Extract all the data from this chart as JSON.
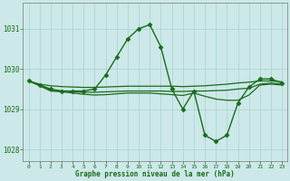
{
  "title": "Graphe pression niveau de la mer (hPa)",
  "background_color": "#cce8e8",
  "grid_color": "#aad0d0",
  "line_color": "#1a6b1a",
  "xlim": [
    -0.5,
    23.5
  ],
  "ylim": [
    1027.7,
    1031.65
  ],
  "yticks": [
    1028,
    1029,
    1030,
    1031
  ],
  "xticks": [
    0,
    1,
    2,
    3,
    4,
    5,
    6,
    7,
    8,
    9,
    10,
    11,
    12,
    13,
    14,
    15,
    16,
    17,
    18,
    19,
    20,
    21,
    22,
    23
  ],
  "series": [
    {
      "x": [
        0,
        1,
        2,
        3,
        4,
        5,
        6,
        7,
        8,
        9,
        10,
        11,
        12,
        13,
        14,
        15,
        16,
        17,
        18,
        19,
        20,
        21,
        22,
        23
      ],
      "y": [
        1029.7,
        1029.6,
        1029.5,
        1029.45,
        1029.45,
        1029.45,
        1029.5,
        1029.85,
        1030.3,
        1030.75,
        1031.0,
        1031.1,
        1030.55,
        1029.5,
        1029.0,
        1029.45,
        1028.35,
        1028.2,
        1028.35,
        1029.15,
        1029.55,
        1029.75,
        1029.75,
        1029.65
      ],
      "marker": "D",
      "markersize": 2.5,
      "linewidth": 1.0
    },
    {
      "x": [
        0,
        1,
        2,
        3,
        4,
        5,
        6,
        7,
        8,
        9,
        10,
        11,
        12,
        13,
        14,
        15,
        16,
        17,
        18,
        19,
        20,
        21,
        22,
        23
      ],
      "y": [
        1029.7,
        1029.62,
        1029.58,
        1029.56,
        1029.55,
        1029.54,
        1029.54,
        1029.55,
        1029.56,
        1029.57,
        1029.57,
        1029.57,
        1029.57,
        1029.57,
        1029.56,
        1029.57,
        1029.58,
        1029.6,
        1029.62,
        1029.65,
        1029.67,
        1029.7,
        1029.7,
        1029.68
      ],
      "marker": "None",
      "markersize": 0,
      "linewidth": 0.9
    },
    {
      "x": [
        0,
        1,
        2,
        3,
        4,
        5,
        6,
        7,
        8,
        9,
        10,
        11,
        12,
        13,
        14,
        15,
        16,
        17,
        18,
        19,
        20,
        21,
        22,
        23
      ],
      "y": [
        1029.7,
        1029.6,
        1029.47,
        1029.45,
        1029.43,
        1029.42,
        1029.42,
        1029.43,
        1029.44,
        1029.45,
        1029.45,
        1029.45,
        1029.45,
        1029.44,
        1029.44,
        1029.45,
        1029.45,
        1029.46,
        1029.47,
        1029.5,
        1029.52,
        1029.62,
        1029.65,
        1029.62
      ],
      "marker": "None",
      "markersize": 0,
      "linewidth": 0.9
    },
    {
      "x": [
        0,
        1,
        2,
        3,
        4,
        5,
        6,
        7,
        8,
        9,
        10,
        11,
        12,
        13,
        14,
        15,
        16,
        17,
        18,
        19,
        20,
        21,
        22,
        23
      ],
      "y": [
        1029.7,
        1029.58,
        1029.45,
        1029.43,
        1029.4,
        1029.37,
        1029.35,
        1029.36,
        1029.38,
        1029.4,
        1029.4,
        1029.4,
        1029.38,
        1029.36,
        1029.34,
        1029.4,
        1029.32,
        1029.25,
        1029.22,
        1029.22,
        1029.35,
        1029.6,
        1029.62,
        1029.6
      ],
      "marker": "None",
      "markersize": 0,
      "linewidth": 0.9
    }
  ]
}
